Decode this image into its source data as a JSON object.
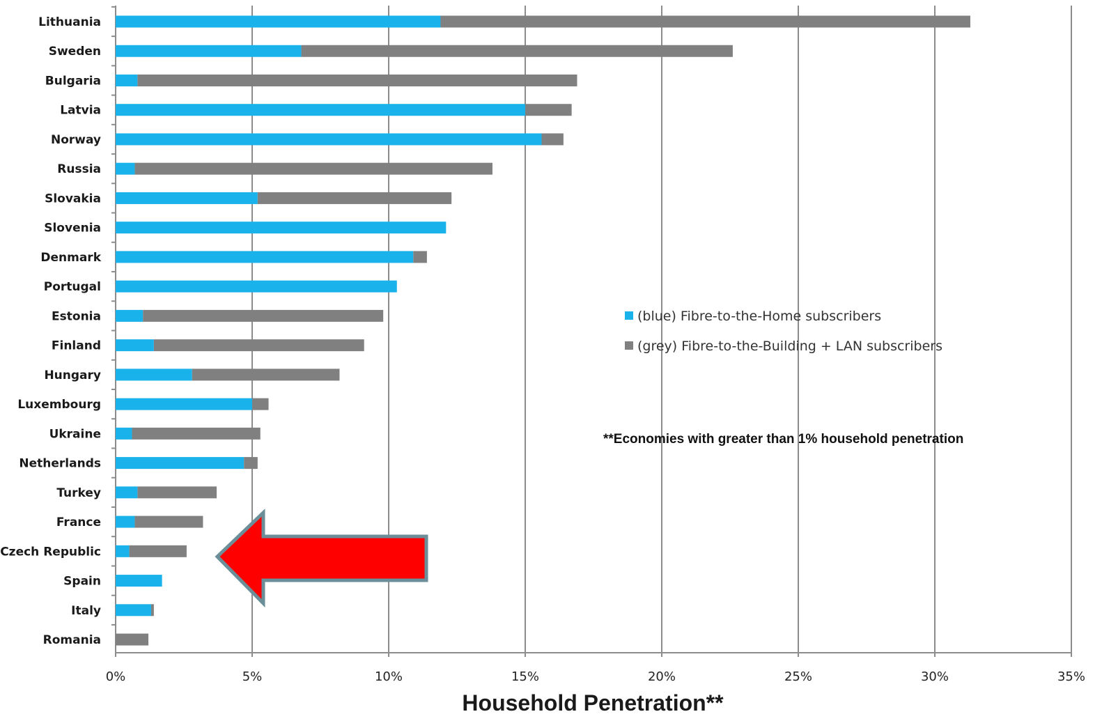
{
  "chart_data": {
    "type": "bar",
    "orientation": "horizontal",
    "stacked": true,
    "categories": [
      "Lithuania",
      "Sweden",
      "Bulgaria",
      "Latvia",
      "Norway",
      "Russia",
      "Slovakia",
      "Slovenia",
      "Denmark",
      "Portugal",
      "Estonia",
      "Finland",
      "Hungary",
      "Luxembourg",
      "Ukraine",
      "Netherlands",
      "Turkey",
      "France",
      "Czech Republic",
      "Spain",
      "Italy",
      "Romania"
    ],
    "series": [
      {
        "name": "(blue) Fibre-to-the-Home subscribers",
        "color": "#1ab2ea",
        "values": [
          11.9,
          6.8,
          0.8,
          15.0,
          15.6,
          0.7,
          5.2,
          12.1,
          10.9,
          10.3,
          1.0,
          1.4,
          2.8,
          5.0,
          0.6,
          4.7,
          0.8,
          0.7,
          0.5,
          1.7,
          1.3,
          0.0
        ]
      },
      {
        "name": "(grey) Fibre-to-the-Building + LAN subscribers",
        "color": "#808080",
        "values": [
          19.4,
          15.8,
          16.1,
          1.7,
          0.8,
          13.1,
          7.1,
          0.0,
          0.5,
          0.0,
          8.8,
          7.7,
          5.4,
          0.6,
          4.7,
          0.5,
          2.9,
          2.5,
          2.1,
          0.0,
          0.1,
          1.2
        ]
      }
    ],
    "xlabel": "Household Penetration**",
    "xlim": [
      0,
      35
    ],
    "xticks": [
      0,
      5,
      10,
      15,
      20,
      25,
      30,
      35
    ],
    "xtick_labels": [
      "0%",
      "5%",
      "10%",
      "15%",
      "20%",
      "25%",
      "30%",
      "35%"
    ],
    "grid": "vertical",
    "legend_position": "center-right",
    "annotation": "**Economies with greater than 1% household penetration",
    "arrow": {
      "color": "#ff0000",
      "outline": "#6b8e99",
      "points_to": "Czech Republic"
    }
  }
}
